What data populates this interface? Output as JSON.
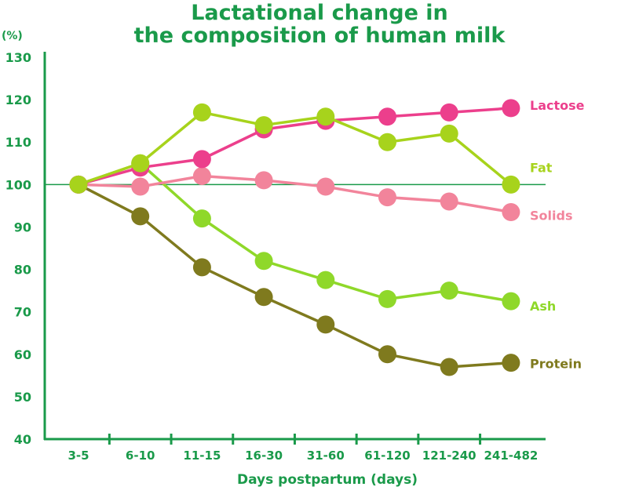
{
  "colors": {
    "axis": "#1a9a4a",
    "Lactose": "#ec3f8c",
    "Fat": "#a7d31c",
    "Solids": "#f2849b",
    "Ash": "#8fd82a",
    "Protein": "#7f7a1e"
  },
  "chart_data": {
    "type": "line",
    "title": "Lactational change in the composition of human milk",
    "title_line1": "Lactational change in",
    "title_line2": "the composition of human milk",
    "ylabel_unit": "(%)",
    "xlabel": "Days postpartum (days)",
    "categories": [
      "3-5",
      "6-10",
      "11-15",
      "16-30",
      "31-60",
      "61-120",
      "121-240",
      "241-482"
    ],
    "ylim": [
      40,
      130
    ],
    "yticks": [
      40,
      50,
      60,
      70,
      80,
      90,
      100,
      110,
      120,
      130
    ],
    "reference_line": 100,
    "grid": false,
    "series": [
      {
        "name": "Lactose",
        "values": [
          100,
          104,
          106,
          113,
          115,
          116,
          117,
          118
        ]
      },
      {
        "name": "Fat",
        "values": [
          100,
          105,
          117,
          114,
          116,
          110,
          112,
          100
        ]
      },
      {
        "name": "Solids",
        "values": [
          100,
          99.5,
          102,
          101,
          99.5,
          97,
          96,
          93.5
        ]
      },
      {
        "name": "Ash",
        "values": [
          100,
          105,
          92,
          82,
          77.5,
          73,
          75,
          72.5
        ]
      },
      {
        "name": "Protein",
        "values": [
          100,
          92.5,
          80.5,
          73.5,
          67,
          60,
          57,
          58
        ]
      }
    ]
  }
}
